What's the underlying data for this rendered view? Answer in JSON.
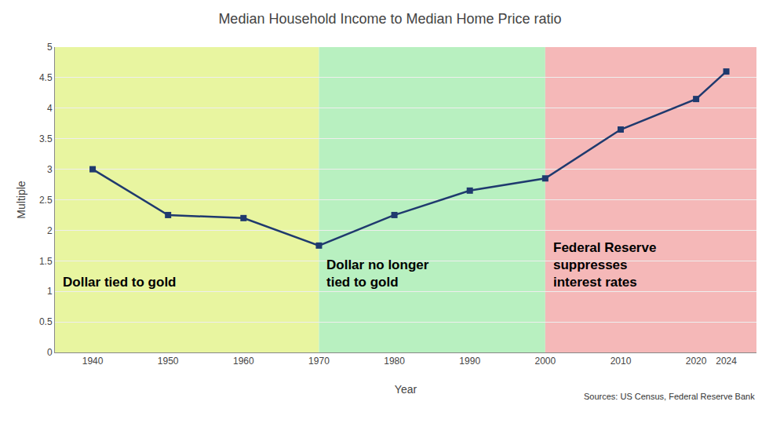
{
  "chart_data": {
    "type": "line",
    "title": "Median Household Income to Median Home Price ratio",
    "xlabel": "Year",
    "ylabel": "Multiple",
    "x": [
      1940,
      1950,
      1960,
      1970,
      1980,
      1990,
      2000,
      2010,
      2020,
      2024
    ],
    "values": [
      3.0,
      2.25,
      2.2,
      1.75,
      2.25,
      2.65,
      2.85,
      3.65,
      4.15,
      4.6
    ],
    "color": "#1f3a6e",
    "marker": "square",
    "xlim": [
      1935,
      2028
    ],
    "xticks": [
      1940,
      1950,
      1960,
      1970,
      1980,
      1990,
      2000,
      2010,
      2020,
      2024
    ],
    "ylim": [
      0,
      5
    ],
    "yticks": [
      0,
      0.5,
      1,
      1.5,
      2,
      2.5,
      3,
      3.5,
      4,
      4.5,
      5
    ],
    "grid": "y",
    "regions": [
      {
        "xmin": 1935,
        "xmax": 1970,
        "color": "#e8f5a0",
        "label": "Dollar tied to gold"
      },
      {
        "xmin": 1970,
        "xmax": 2000,
        "color": "#b8f0c0",
        "label": "Dollar no longer\ntied to gold"
      },
      {
        "xmin": 2000,
        "xmax": 2028,
        "color": "#f5b8b8",
        "label": "Federal Reserve\nsuppresses\ninterest rates"
      }
    ],
    "source": "Sources: US Census, Federal Reserve Bank"
  }
}
